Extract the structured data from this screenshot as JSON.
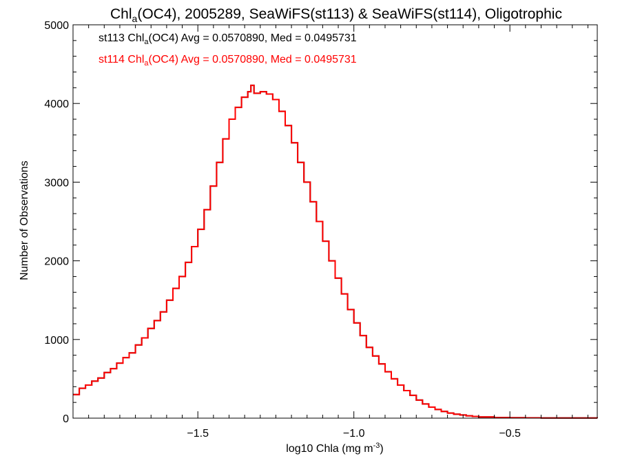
{
  "chart_data": {
    "type": "line",
    "title": {
      "prefix": "Chl",
      "sub": "a",
      "suffix": "(OC4), 2005289, SeaWiFS(st113) & SeaWiFS(st114), Oligotrophic"
    },
    "xlabel": {
      "text": "log10 Chla (mg m",
      "sup": "-3",
      "end": ")"
    },
    "ylabel": "Number of Observations",
    "xlim": [
      -1.9,
      -0.22
    ],
    "ylim": [
      0,
      5000
    ],
    "xticks": [
      -1.5,
      -1.0,
      -0.5
    ],
    "xtick_labels": [
      "−1.5",
      "−1.0",
      "−0.5"
    ],
    "yticks": [
      0,
      1000,
      2000,
      3000,
      4000,
      5000
    ],
    "ytick_labels": [
      "0",
      "1000",
      "2000",
      "3000",
      "4000",
      "5000"
    ],
    "grid": false,
    "legend": [
      {
        "prefix": "st113 Chl",
        "sub": "a",
        "suffix": "(OC4) Avg = 0.0570890, Med = 0.0495731",
        "color": "#000000"
      },
      {
        "prefix": "st114 Chl",
        "sub": "a",
        "suffix": "(OC4) Avg = 0.0570890, Med = 0.0495731",
        "color": "#ff0000"
      }
    ],
    "series": [
      {
        "name": "st113",
        "color": "#000000",
        "x": [
          -1.9,
          -1.88,
          -1.86,
          -1.84,
          -1.82,
          -1.8,
          -1.78,
          -1.76,
          -1.74,
          -1.72,
          -1.7,
          -1.68,
          -1.66,
          -1.64,
          -1.62,
          -1.6,
          -1.58,
          -1.56,
          -1.54,
          -1.52,
          -1.5,
          -1.48,
          -1.46,
          -1.44,
          -1.42,
          -1.4,
          -1.38,
          -1.36,
          -1.34,
          -1.33,
          -1.32,
          -1.3,
          -1.28,
          -1.26,
          -1.24,
          -1.22,
          -1.2,
          -1.18,
          -1.16,
          -1.14,
          -1.12,
          -1.1,
          -1.08,
          -1.06,
          -1.04,
          -1.02,
          -1.0,
          -0.98,
          -0.96,
          -0.94,
          -0.92,
          -0.9,
          -0.88,
          -0.86,
          -0.84,
          -0.82,
          -0.8,
          -0.78,
          -0.76,
          -0.74,
          -0.72,
          -0.7,
          -0.68,
          -0.66,
          -0.64,
          -0.62,
          -0.6,
          -0.55,
          -0.5,
          -0.45,
          -0.4,
          -0.35,
          -0.3,
          -0.22
        ],
        "y": [
          300,
          380,
          420,
          470,
          510,
          580,
          630,
          700,
          770,
          830,
          930,
          1020,
          1140,
          1240,
          1350,
          1500,
          1650,
          1800,
          1980,
          2180,
          2400,
          2650,
          2950,
          3250,
          3550,
          3800,
          3950,
          4080,
          4150,
          4230,
          4130,
          4150,
          4120,
          4050,
          3900,
          3720,
          3500,
          3250,
          3000,
          2750,
          2500,
          2250,
          2000,
          1780,
          1580,
          1380,
          1210,
          1050,
          900,
          790,
          690,
          590,
          500,
          420,
          350,
          290,
          230,
          180,
          140,
          110,
          85,
          65,
          50,
          40,
          30,
          22,
          15,
          8,
          5,
          4,
          3,
          2,
          2,
          1
        ]
      },
      {
        "name": "st114",
        "color": "#ff0000",
        "x": [
          -1.9,
          -1.88,
          -1.86,
          -1.84,
          -1.82,
          -1.8,
          -1.78,
          -1.76,
          -1.74,
          -1.72,
          -1.7,
          -1.68,
          -1.66,
          -1.64,
          -1.62,
          -1.6,
          -1.58,
          -1.56,
          -1.54,
          -1.52,
          -1.5,
          -1.48,
          -1.46,
          -1.44,
          -1.42,
          -1.4,
          -1.38,
          -1.36,
          -1.34,
          -1.33,
          -1.32,
          -1.3,
          -1.28,
          -1.26,
          -1.24,
          -1.22,
          -1.2,
          -1.18,
          -1.16,
          -1.14,
          -1.12,
          -1.1,
          -1.08,
          -1.06,
          -1.04,
          -1.02,
          -1.0,
          -0.98,
          -0.96,
          -0.94,
          -0.92,
          -0.9,
          -0.88,
          -0.86,
          -0.84,
          -0.82,
          -0.8,
          -0.78,
          -0.76,
          -0.74,
          -0.72,
          -0.7,
          -0.68,
          -0.66,
          -0.64,
          -0.62,
          -0.6,
          -0.55,
          -0.5,
          -0.45,
          -0.4,
          -0.35,
          -0.3,
          -0.22
        ],
        "y": [
          300,
          380,
          420,
          470,
          510,
          580,
          630,
          700,
          770,
          830,
          930,
          1020,
          1140,
          1240,
          1350,
          1500,
          1650,
          1800,
          1980,
          2180,
          2400,
          2650,
          2950,
          3250,
          3550,
          3800,
          3950,
          4080,
          4150,
          4230,
          4130,
          4150,
          4120,
          4050,
          3900,
          3720,
          3500,
          3250,
          3000,
          2750,
          2500,
          2250,
          2000,
          1780,
          1580,
          1380,
          1210,
          1050,
          900,
          790,
          690,
          590,
          500,
          420,
          350,
          290,
          230,
          180,
          140,
          110,
          85,
          65,
          50,
          40,
          30,
          22,
          15,
          8,
          5,
          4,
          3,
          2,
          2,
          1
        ]
      }
    ]
  }
}
